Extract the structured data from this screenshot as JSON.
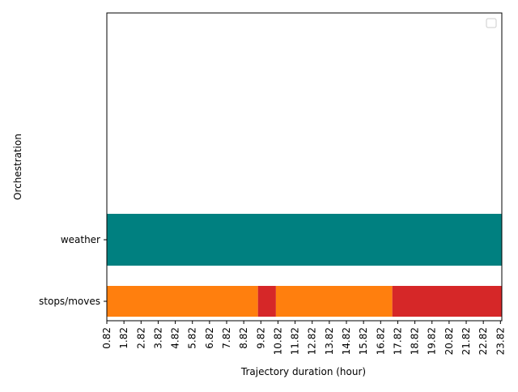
{
  "chart_data": {
    "type": "bar",
    "orientation": "horizontal",
    "title": "",
    "xlabel": "Trajectory duration (hour)",
    "ylabel": "Orchestration",
    "xlim": [
      0.82,
      23.9
    ],
    "x_ticks": [
      "0.82",
      "1.82",
      "2.82",
      "3.82",
      "4.82",
      "5.82",
      "6.82",
      "7.82",
      "8.82",
      "9.82",
      "10.82",
      "11.82",
      "12.82",
      "13.82",
      "14.82",
      "15.82",
      "16.82",
      "17.82",
      "18.82",
      "19.82",
      "20.82",
      "21.82",
      "22.82",
      "23.82"
    ],
    "categories": [
      "stops/moves",
      "weather"
    ],
    "legend": {
      "position": "top-right",
      "entries": []
    },
    "grid": false,
    "rows": [
      {
        "category": "weather",
        "segments": [
          {
            "start": 0.82,
            "end": 23.9,
            "color": "#008080"
          }
        ]
      },
      {
        "category": "stops/moves",
        "segments": [
          {
            "start": 0.82,
            "end": 9.65,
            "color": "#ff7f0e"
          },
          {
            "start": 9.65,
            "end": 10.7,
            "color": "#d62728"
          },
          {
            "start": 10.7,
            "end": 17.5,
            "color": "#ff7f0e"
          },
          {
            "start": 17.5,
            "end": 23.9,
            "color": "#d62728"
          }
        ]
      }
    ]
  }
}
